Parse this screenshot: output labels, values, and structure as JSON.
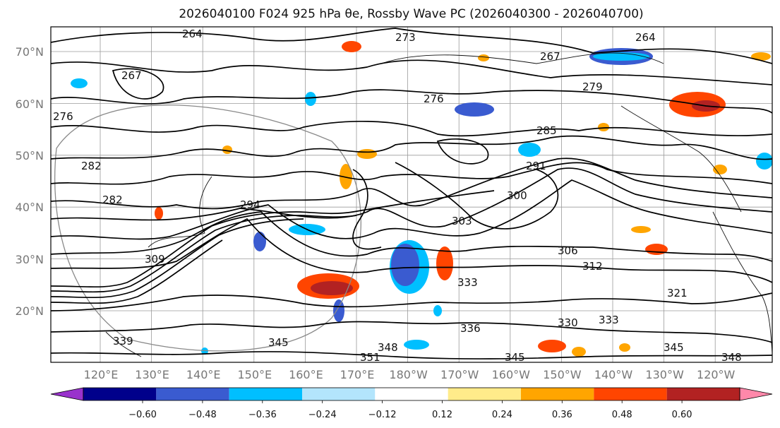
{
  "title": "2026040100 F024 925 hPa θe, Rossby Wave PC (2026040300 - 2026040700)",
  "lat_labels": [
    "70°N",
    "60°N",
    "50°N",
    "40°N",
    "30°N",
    "20°N"
  ],
  "lon_labels": [
    "120°E",
    "130°E",
    "140°E",
    "150°E",
    "160°E",
    "170°E",
    "180°W",
    "170°W",
    "160°W",
    "150°W",
    "140°W",
    "130°W",
    "120°W"
  ],
  "contour_labels": [
    "264",
    "267",
    "273",
    "264",
    "267",
    "279",
    "276",
    "276",
    "285",
    "282",
    "282",
    "294",
    "291",
    "300",
    "303",
    "306",
    "312",
    "309",
    "333",
    "336",
    "330",
    "333",
    "321",
    "339",
    "345",
    "348",
    "345",
    "351",
    "345",
    "348"
  ],
  "colorbar": {
    "ticks": [
      "−0.60",
      "−0.48",
      "−0.36",
      "−0.24",
      "−0.12",
      "0.12",
      "0.24",
      "0.36",
      "0.48",
      "0.60"
    ],
    "colors": [
      "#9932cc",
      "#00008b",
      "#3a5bd0",
      "#00bfff",
      "#b3e5fc",
      "#ffffff",
      "#ffeb8a",
      "#ffa500",
      "#ff4500",
      "#b22222",
      "#ff88aa"
    ]
  }
}
